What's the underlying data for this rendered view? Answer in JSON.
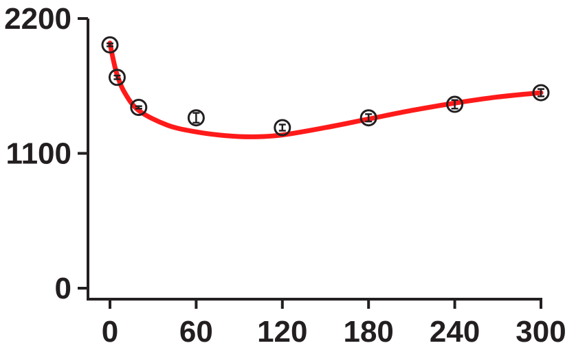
{
  "chart_data": {
    "type": "scatter",
    "title": "",
    "xlabel": "",
    "ylabel": "",
    "xlim": [
      0,
      300
    ],
    "ylim": [
      0,
      2200
    ],
    "x_ticks": [
      0,
      60,
      120,
      180,
      240,
      300
    ],
    "y_ticks": [
      0,
      1100,
      2200
    ],
    "x_tick_labels": [
      "0",
      "60",
      "120",
      "180",
      "240",
      "300"
    ],
    "y_tick_labels": [
      "0",
      "1100",
      "2200"
    ],
    "grid": false,
    "legend": "none",
    "colors": {
      "fit": "#ff1a1a",
      "marker": "#231f20",
      "axis": "#231f20"
    },
    "points": [
      {
        "x": 0,
        "y": 1985,
        "err": 12
      },
      {
        "x": 5,
        "y": 1720,
        "err": 15
      },
      {
        "x": 20,
        "y": 1475,
        "err": 10
      },
      {
        "x": 60,
        "y": 1390,
        "err": 40
      },
      {
        "x": 120,
        "y": 1310,
        "err": 25
      },
      {
        "x": 180,
        "y": 1390,
        "err": 30
      },
      {
        "x": 240,
        "y": 1500,
        "err": 35
      },
      {
        "x": 300,
        "y": 1595,
        "err": 30
      }
    ],
    "fit_curve": [
      [
        0,
        2000
      ],
      [
        2,
        1880
      ],
      [
        5,
        1740
      ],
      [
        10,
        1600
      ],
      [
        20,
        1450
      ],
      [
        40,
        1330
      ],
      [
        60,
        1275
      ],
      [
        80,
        1245
      ],
      [
        100,
        1235
      ],
      [
        120,
        1250
      ],
      [
        150,
        1310
      ],
      [
        180,
        1380
      ],
      [
        210,
        1450
      ],
      [
        240,
        1510
      ],
      [
        270,
        1560
      ],
      [
        300,
        1595
      ]
    ]
  }
}
